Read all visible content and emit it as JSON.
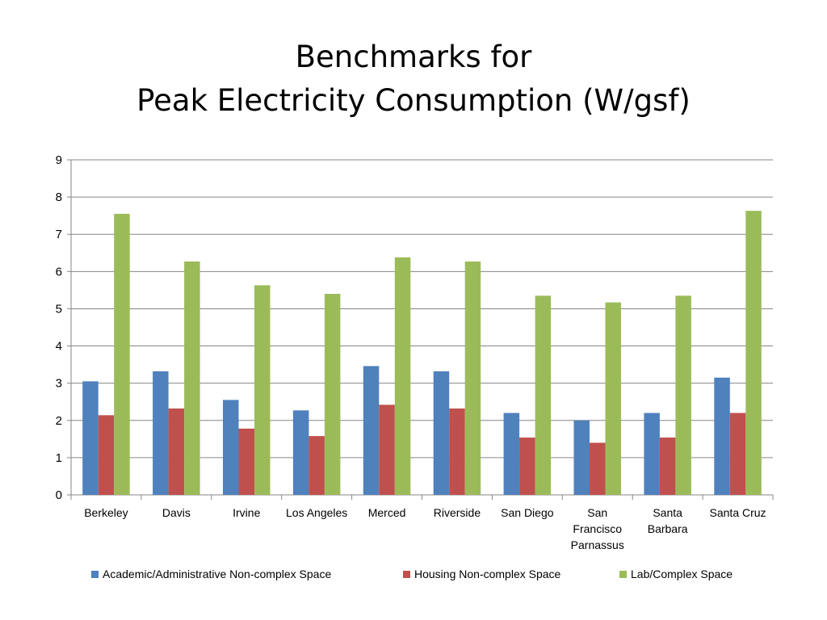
{
  "title": {
    "line1": "Benchmarks for",
    "line2": "Peak Electricity Consumption (W/gsf)"
  },
  "chart_data": {
    "type": "bar",
    "title": "Benchmarks for Peak Electricity Consumption (W/gsf)",
    "categories": [
      [
        "Berkeley"
      ],
      [
        "Davis"
      ],
      [
        "Irvine"
      ],
      [
        "Los Angeles"
      ],
      [
        "Merced"
      ],
      [
        "Riverside"
      ],
      [
        "San Diego"
      ],
      [
        "San",
        "Francisco",
        "Parnassus"
      ],
      [
        "Santa",
        "Barbara"
      ],
      [
        "Santa Cruz"
      ]
    ],
    "series": [
      {
        "name": "Academic/Administrative Non-complex Space",
        "color": "#4F81BD",
        "values": [
          3.05,
          3.32,
          2.55,
          2.27,
          3.46,
          3.32,
          2.2,
          2.0,
          2.2,
          3.15
        ]
      },
      {
        "name": "Housing Non-complex Space",
        "color": "#C0504D",
        "values": [
          2.14,
          2.32,
          1.78,
          1.58,
          2.42,
          2.32,
          1.54,
          1.4,
          1.54,
          2.2
        ]
      },
      {
        "name": "Lab/Complex Space",
        "color": "#9BBB59",
        "values": [
          7.55,
          6.27,
          5.63,
          5.4,
          6.38,
          6.27,
          5.35,
          5.17,
          5.35,
          7.63
        ]
      }
    ],
    "ylim": [
      0,
      9
    ],
    "yticks": [
      0,
      1,
      2,
      3,
      4,
      5,
      6,
      7,
      8,
      9
    ],
    "grid": true,
    "legend": "bottom"
  }
}
